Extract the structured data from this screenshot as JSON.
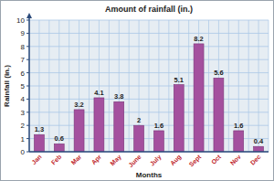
{
  "chart_data": {
    "type": "bar",
    "title": "Amount of rainfall (in.)",
    "x_label": "Months",
    "y_label": "Rainfall (in.)",
    "categories": [
      "Jan",
      "Feb",
      "Mar",
      "Apr",
      "May",
      "June",
      "July",
      "Aug",
      "Sept",
      "Oct",
      "Nov",
      "Dec"
    ],
    "values": [
      1.3,
      0.6,
      3.2,
      4.1,
      3.8,
      2,
      1.6,
      5.1,
      8.2,
      5.6,
      1.6,
      0.4
    ],
    "color": "#a4509e",
    "ylim": [
      0,
      10
    ],
    "yticks": [
      0,
      1,
      2,
      3,
      4,
      5,
      6,
      7,
      8,
      9,
      10
    ],
    "grid": true,
    "data_labels": true
  }
}
